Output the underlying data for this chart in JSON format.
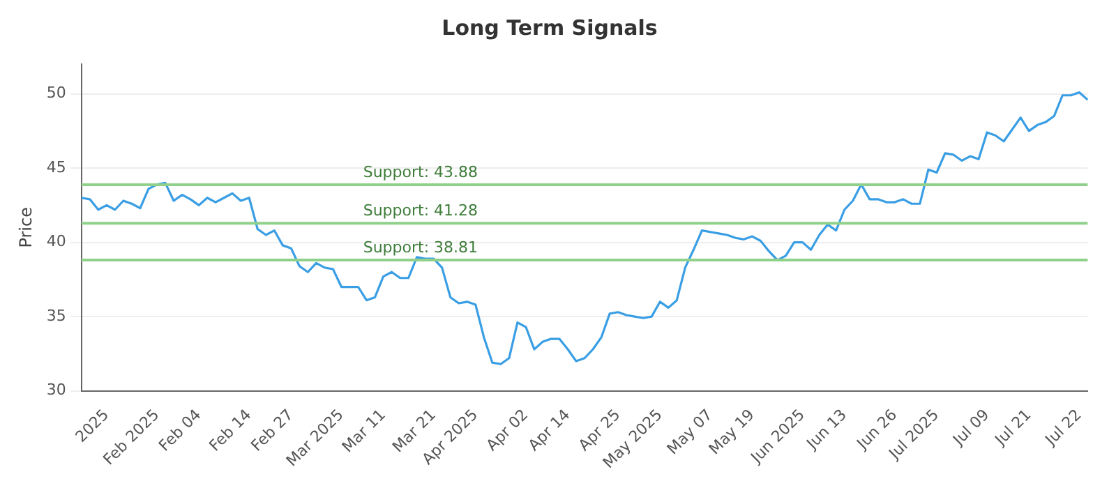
{
  "chart_data": {
    "type": "line",
    "title": "Long Term Signals",
    "ylabel": "Price",
    "categories": [
      null,
      null,
      null,
      "2025",
      null,
      null,
      null,
      null,
      null,
      "Feb 2025",
      null,
      null,
      null,
      null,
      "Feb 04",
      null,
      null,
      null,
      null,
      null,
      "Feb 14",
      null,
      null,
      null,
      null,
      "Feb 27",
      null,
      null,
      null,
      null,
      null,
      "Mar 2025",
      null,
      null,
      null,
      null,
      "Mar 11",
      null,
      null,
      null,
      null,
      null,
      "Mar 21",
      null,
      null,
      null,
      null,
      "Apr 2025",
      null,
      null,
      null,
      null,
      null,
      "Apr 02",
      null,
      null,
      null,
      null,
      "Apr 14",
      null,
      null,
      null,
      null,
      null,
      "Apr 25",
      null,
      null,
      null,
      null,
      "May 2025",
      null,
      null,
      null,
      null,
      null,
      "May 07",
      null,
      null,
      null,
      null,
      "May 19",
      null,
      null,
      null,
      null,
      null,
      "Jun 2025",
      null,
      null,
      null,
      null,
      "Jun 13",
      null,
      null,
      null,
      null,
      null,
      "Jun 26",
      null,
      null,
      null,
      null,
      "Jul 2025",
      null,
      null,
      null,
      null,
      null,
      "Jul 09",
      null,
      null,
      null,
      null,
      "Jul 21",
      null,
      null,
      null,
      null,
      null,
      "Jul 22",
      null
    ],
    "series": [
      {
        "color": "#3a9ee4",
        "values": [
          43.0,
          42.9,
          42.2,
          42.5,
          42.2,
          42.8,
          42.6,
          42.3,
          43.6,
          43.9,
          44.0,
          42.8,
          43.2,
          42.9,
          42.5,
          43.0,
          42.7,
          43.0,
          43.3,
          42.8,
          43.0,
          40.9,
          40.5,
          40.8,
          39.8,
          39.6,
          38.4,
          38.0,
          38.6,
          38.3,
          38.2,
          37.0,
          37.0,
          37.0,
          36.1,
          36.3,
          37.7,
          38.0,
          37.6,
          37.6,
          39.0,
          38.9,
          38.9,
          38.3,
          36.3,
          35.9,
          36.0,
          35.8,
          33.6,
          31.9,
          31.8,
          32.2,
          34.6,
          34.3,
          32.8,
          33.3,
          33.5,
          33.5,
          32.8,
          32.0,
          32.2,
          32.8,
          33.6,
          35.2,
          35.3,
          35.1,
          35.0,
          34.9,
          35.0,
          36.0,
          35.6,
          36.1,
          38.3,
          39.5,
          40.8,
          40.7,
          40.6,
          40.5,
          40.3,
          40.2,
          40.4,
          40.1,
          39.4,
          38.8,
          39.1,
          40.0,
          40.0,
          39.5,
          40.5,
          41.2,
          40.8,
          42.2,
          42.8,
          43.9,
          42.9,
          42.9,
          42.7,
          42.7,
          42.9,
          42.6,
          42.6,
          44.9,
          44.7,
          46.0,
          45.9,
          45.5,
          45.8,
          45.6,
          47.4,
          47.2,
          46.8,
          47.6,
          48.4,
          47.5,
          47.9,
          48.1,
          48.5,
          49.9,
          49.9,
          50.1,
          49.6
        ]
      }
    ],
    "ylim": [
      30,
      52
    ],
    "yticks": [
      30,
      35,
      40,
      45,
      50
    ],
    "grid": "y",
    "legend": false,
    "marker": "none",
    "line_style": "solid",
    "ref_lines": [
      {
        "axis": "y",
        "value": 43.88,
        "label": "Support: 43.88",
        "color": "#8fd18a"
      },
      {
        "axis": "y",
        "value": 41.28,
        "label": "Support: 41.28",
        "color": "#8fd18a"
      },
      {
        "axis": "y",
        "value": 38.81,
        "label": "Support: 38.81",
        "color": "#8fd18a"
      }
    ]
  }
}
